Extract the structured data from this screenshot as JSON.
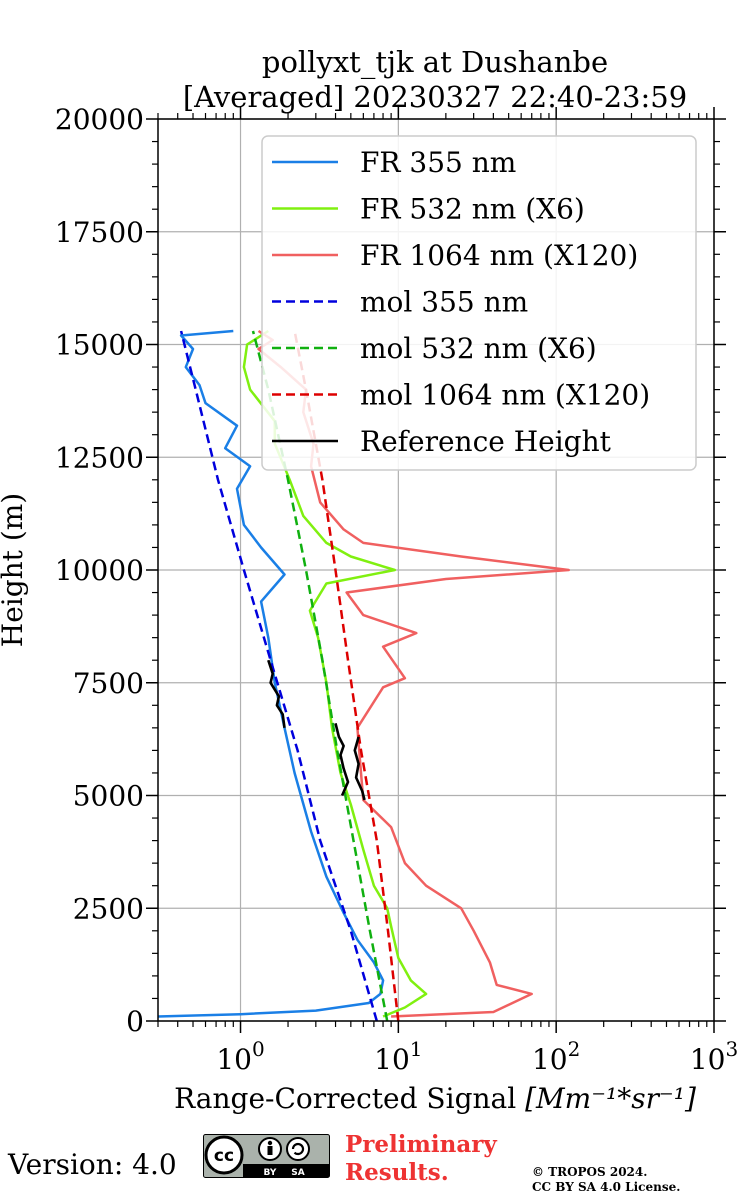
{
  "chart_data": {
    "type": "line",
    "title": "pollyxt_tjk at Dushanbe",
    "subtitle": "[Averaged] 20230327 22:40-23:59",
    "xlabel_prefix": "Range-Corrected Signal ",
    "xlabel_unit": "[Mm⁻¹*sr⁻¹]",
    "ylabel": "Height (m)",
    "xscale": "log",
    "xlim": [
      0.3,
      1000
    ],
    "ylim": [
      0,
      20000
    ],
    "grid": true,
    "legend_position": "top-right",
    "x_ticks": [
      {
        "value": 1,
        "base": "10",
        "exp": "0"
      },
      {
        "value": 10,
        "base": "10",
        "exp": "1"
      },
      {
        "value": 100,
        "base": "10",
        "exp": "2"
      },
      {
        "value": 1000,
        "base": "10",
        "exp": "3"
      }
    ],
    "y_ticks": [
      {
        "value": 0,
        "label": "0"
      },
      {
        "value": 2500,
        "label": "2500"
      },
      {
        "value": 5000,
        "label": "5000"
      },
      {
        "value": 7500,
        "label": "7500"
      },
      {
        "value": 10000,
        "label": "10000"
      },
      {
        "value": 12500,
        "label": "12500"
      },
      {
        "value": 15000,
        "label": "15000"
      },
      {
        "value": 17500,
        "label": "17500"
      },
      {
        "value": 20000,
        "label": "20000"
      }
    ],
    "series": [
      {
        "name": "FR 355 nm",
        "color": "#1a7fe6",
        "dash": "solid",
        "points": [
          [
            0.3,
            100
          ],
          [
            1,
            150
          ],
          [
            3,
            230
          ],
          [
            6.5,
            400
          ],
          [
            7.7,
            600
          ],
          [
            8,
            900
          ],
          [
            7,
            1300
          ],
          [
            5.5,
            1800
          ],
          [
            4.5,
            2400
          ],
          [
            3.5,
            3200
          ],
          [
            2.8,
            4200
          ],
          [
            2.2,
            5500
          ],
          [
            1.9,
            6500
          ],
          [
            1.65,
            7500
          ],
          [
            1.5,
            8500
          ],
          [
            1.35,
            9300
          ],
          [
            1.9,
            9900
          ],
          [
            1.35,
            10500
          ],
          [
            1.05,
            11000
          ],
          [
            0.95,
            11800
          ],
          [
            1.15,
            12300
          ],
          [
            0.8,
            12700
          ],
          [
            0.95,
            13200
          ],
          [
            0.6,
            13700
          ],
          [
            0.55,
            14100
          ],
          [
            0.45,
            14500
          ],
          [
            0.5,
            14900
          ],
          [
            0.42,
            15200
          ],
          [
            0.9,
            15300
          ]
        ]
      },
      {
        "name": "FR 532 nm (X6)",
        "color": "#80f010",
        "dash": "solid",
        "points": [
          [
            8,
            100
          ],
          [
            11,
            300
          ],
          [
            15,
            600
          ],
          [
            12,
            900
          ],
          [
            10,
            1400
          ],
          [
            9,
            2100
          ],
          [
            8.5,
            2500
          ],
          [
            7,
            3000
          ],
          [
            6,
            3800
          ],
          [
            5,
            4800
          ],
          [
            4.3,
            5500
          ],
          [
            3.8,
            6500
          ],
          [
            3.5,
            7500
          ],
          [
            3.1,
            8500
          ],
          [
            2.75,
            9100
          ],
          [
            3.5,
            9700
          ],
          [
            9.5,
            10000
          ],
          [
            5,
            10300
          ],
          [
            3.5,
            10600
          ],
          [
            2.5,
            11200
          ],
          [
            2.05,
            12000
          ],
          [
            1.65,
            12800
          ],
          [
            1.65,
            13300
          ],
          [
            1.15,
            14000
          ],
          [
            1.05,
            14500
          ],
          [
            1.1,
            15000
          ],
          [
            1.5,
            15300
          ]
        ]
      },
      {
        "name": "FR 1064 nm (X120)",
        "color": "#f06060",
        "dash": "solid",
        "points": [
          [
            9,
            100
          ],
          [
            40,
            200
          ],
          [
            70,
            600
          ],
          [
            42,
            800
          ],
          [
            38,
            1300
          ],
          [
            30,
            2000
          ],
          [
            25,
            2500
          ],
          [
            15,
            3000
          ],
          [
            11,
            3500
          ],
          [
            9,
            4300
          ],
          [
            6,
            4900
          ],
          [
            5.8,
            5500
          ],
          [
            5.5,
            6500
          ],
          [
            8,
            7400
          ],
          [
            11,
            7600
          ],
          [
            8,
            8300
          ],
          [
            13,
            8600
          ],
          [
            6,
            9000
          ],
          [
            4.7,
            9500
          ],
          [
            20,
            9800
          ],
          [
            120,
            10000
          ],
          [
            25,
            10300
          ],
          [
            6,
            10600
          ],
          [
            4.5,
            10900
          ],
          [
            3.2,
            11500
          ],
          [
            2.8,
            12300
          ],
          [
            2.9,
            12800
          ],
          [
            2.5,
            13500
          ],
          [
            2.6,
            14000
          ],
          [
            1.8,
            14500
          ],
          [
            1.3,
            14900
          ],
          [
            1.6,
            15100
          ],
          [
            1.3,
            15300
          ]
        ]
      },
      {
        "name": "mol 355 nm",
        "color": "#0000dd",
        "dash": "dashed",
        "points": [
          [
            7.3,
            0
          ],
          [
            5,
            2000
          ],
          [
            3.2,
            4000
          ],
          [
            2.3,
            6000
          ],
          [
            1.55,
            8000
          ],
          [
            1.05,
            10000
          ],
          [
            0.72,
            12000
          ],
          [
            0.52,
            14000
          ],
          [
            0.42,
            15300
          ]
        ]
      },
      {
        "name": "mol 532 nm (X6)",
        "color": "#10b010",
        "dash": "dashed",
        "points": [
          [
            8.5,
            0
          ],
          [
            6.6,
            2000
          ],
          [
            5.2,
            4000
          ],
          [
            4.1,
            6000
          ],
          [
            3.3,
            8000
          ],
          [
            2.6,
            10000
          ],
          [
            2.0,
            12000
          ],
          [
            1.5,
            14000
          ],
          [
            1.2,
            15300
          ]
        ]
      },
      {
        "name": "mol 1064 nm (X120)",
        "color": "#dd0000",
        "dash": "dashed",
        "points": [
          [
            10,
            0
          ],
          [
            8.6,
            2000
          ],
          [
            7.3,
            4000
          ],
          [
            5.8,
            6000
          ],
          [
            4.8,
            8000
          ],
          [
            4,
            10000
          ],
          [
            3.3,
            12000
          ],
          [
            2.6,
            14000
          ],
          [
            2.2,
            15300
          ]
        ]
      },
      {
        "name": "Reference Height",
        "color": "#000000",
        "dash": "solid",
        "legend_only": true
      }
    ],
    "reference_segments": [
      {
        "points": [
          [
            1.5,
            8000
          ],
          [
            1.6,
            7700
          ],
          [
            1.55,
            7500
          ],
          [
            1.75,
            7200
          ],
          [
            1.7,
            7000
          ],
          [
            1.85,
            6800
          ],
          [
            1.9,
            6500
          ]
        ]
      },
      {
        "points": [
          [
            4,
            6600
          ],
          [
            4.2,
            6300
          ],
          [
            4.5,
            6100
          ],
          [
            4.3,
            5900
          ],
          [
            4.5,
            5600
          ],
          [
            4.8,
            5300
          ],
          [
            4.4,
            5000
          ]
        ]
      },
      {
        "points": [
          [
            5.6,
            6300
          ],
          [
            5.3,
            6000
          ],
          [
            5.6,
            5700
          ],
          [
            5.4,
            5400
          ],
          [
            5.9,
            5100
          ],
          [
            6.1,
            4900
          ]
        ]
      }
    ]
  },
  "footer": {
    "version_text": "Version: 4.0",
    "cc_badge_text": "cc",
    "cc_by": "BY",
    "cc_sa": "SA",
    "preliminary_line1": "Preliminary",
    "preliminary_line2": "Results.",
    "preliminary_color": "#ee3333",
    "copyright_line1": "© TROPOS 2024.",
    "copyright_line2": "CC BY SA 4.0 License."
  }
}
